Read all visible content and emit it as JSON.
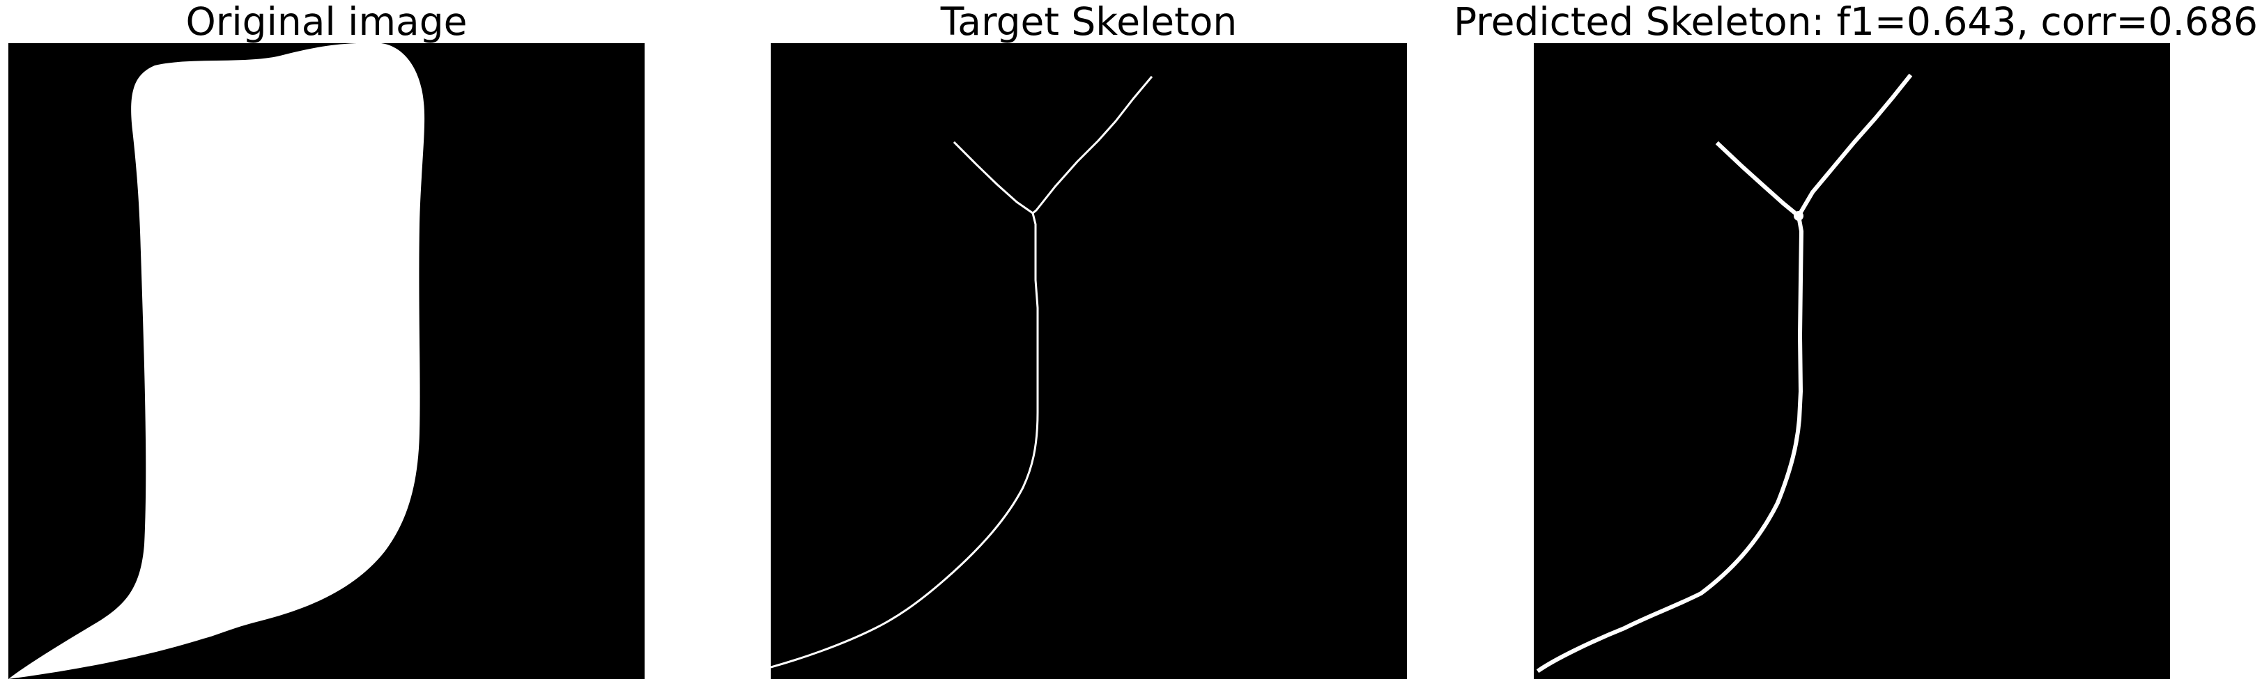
{
  "panels": [
    {
      "title": "Original image"
    },
    {
      "title": "Target Skeleton"
    },
    {
      "title": "Predicted Skeleton: f1=0.643, corr=0.686"
    }
  ],
  "colors": {
    "background": "#000000",
    "foreground": "#ffffff",
    "page": "#ffffff"
  },
  "metrics": {
    "f1": 0.643,
    "corr": 0.686
  }
}
